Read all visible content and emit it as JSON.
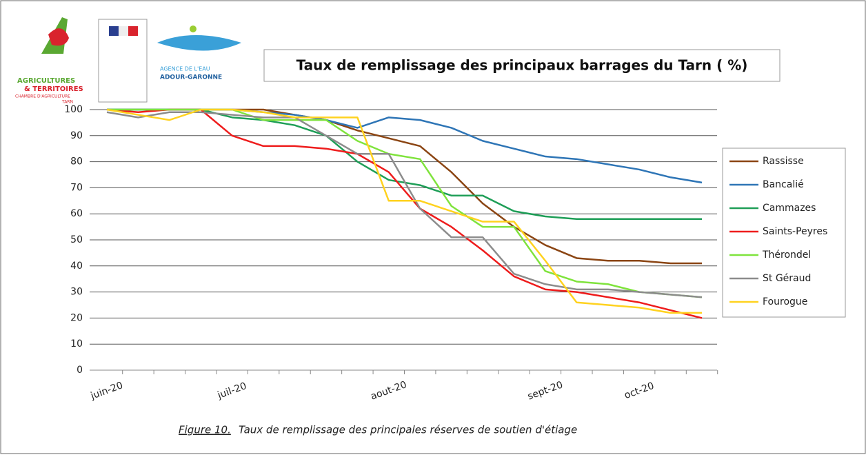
{
  "logos": {
    "chamber_line1": "AGRICULTURES",
    "chamber_line2": "& TERRITOIRES",
    "chamber_line3": "CHAMBRE D'AGRICULTURE",
    "chamber_line4": "TARN",
    "agency_line1": "AGENCE DE L'EAU",
    "agency_line2": "ADOUR-GARONNE"
  },
  "chart_data": {
    "type": "line",
    "title": "Taux de remplissage des principaux barrages du Tarn ( %)",
    "categories": [
      "juin-20",
      null,
      null,
      null,
      "juil-20",
      null,
      null,
      null,
      null,
      "aout-20",
      null,
      null,
      null,
      null,
      "sept-20",
      null,
      null,
      "oct-20",
      null,
      null
    ],
    "ylim": [
      0,
      100
    ],
    "yticks": [
      0,
      10,
      20,
      30,
      40,
      50,
      60,
      70,
      80,
      90,
      100
    ],
    "grid": true,
    "legend": "right",
    "series": [
      {
        "name": "Rassisse",
        "color": "#8b4513",
        "values": [
          100,
          100,
          100,
          100,
          100,
          100,
          98,
          96,
          92,
          89,
          86,
          76,
          64,
          55,
          48,
          43,
          42,
          42,
          41,
          41
        ]
      },
      {
        "name": "Bancalié",
        "color": "#2e75b6",
        "values": [
          100,
          100,
          100,
          100,
          100,
          99,
          98,
          96,
          93,
          97,
          96,
          93,
          88,
          85,
          82,
          81,
          79,
          77,
          74,
          72
        ]
      },
      {
        "name": "Cammazes",
        "color": "#1e9e57",
        "values": [
          100,
          100,
          100,
          100,
          97,
          96,
          94,
          90,
          80,
          73,
          71,
          67,
          67,
          61,
          59,
          58,
          58,
          58,
          58,
          58
        ]
      },
      {
        "name": "Saints-Peyres",
        "color": "#ee1c1c",
        "values": [
          100,
          99,
          100,
          100,
          90,
          86,
          86,
          85,
          83,
          76,
          62,
          55,
          46,
          36,
          31,
          30,
          28,
          26,
          23,
          20
        ]
      },
      {
        "name": "Thérondel",
        "color": "#7fe33c",
        "values": [
          100,
          100,
          100,
          100,
          100,
          96,
          96,
          96,
          88,
          83,
          81,
          63,
          55,
          55,
          38,
          34,
          33,
          30,
          29,
          28
        ]
      },
      {
        "name": "St Géraud",
        "color": "#8c8c8c",
        "values": [
          99,
          97,
          99,
          99,
          98,
          97,
          97,
          90,
          83,
          83,
          62,
          51,
          51,
          37,
          33,
          31,
          31,
          30,
          29,
          28
        ]
      },
      {
        "name": "Fourogue",
        "color": "#ffd21f",
        "values": [
          100,
          98,
          96,
          100,
          100,
          99,
          97,
          97,
          97,
          65,
          65,
          61,
          57,
          57,
          42,
          26,
          25,
          24,
          22,
          22
        ]
      }
    ]
  },
  "caption": {
    "label": "Figure 10.",
    "text": "Taux de remplissage des principales réserves de soutien d'étiage"
  }
}
